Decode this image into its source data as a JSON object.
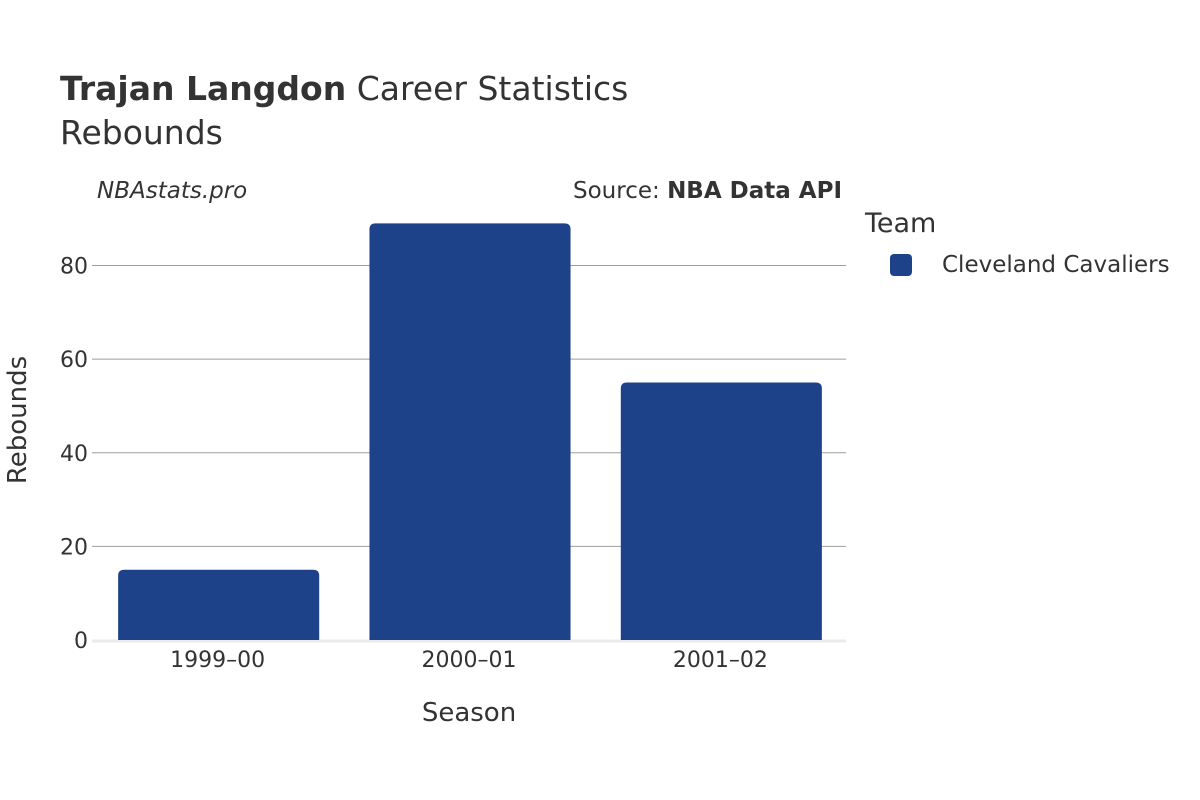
{
  "header": {
    "player": "Trajan Langdon",
    "title_rest": "Career Statistics",
    "subtitle": "Rebounds",
    "brand": "NBAstats.pro",
    "source_prefix": "Source: ",
    "source_name": "NBA Data API"
  },
  "legend": {
    "title": "Team",
    "items": [
      {
        "label": "Cleveland Cavaliers",
        "color": "#1d4289"
      }
    ]
  },
  "chart_data": {
    "type": "bar",
    "categories": [
      "1999–00",
      "2000–01",
      "2001–02"
    ],
    "series": [
      {
        "name": "Cleveland Cavaliers",
        "values": [
          15,
          89,
          55
        ],
        "color": "#1d4289"
      }
    ],
    "xlabel": "Season",
    "ylabel": "Rebounds",
    "ylim": [
      0,
      90
    ],
    "yticks": [
      0,
      20,
      40,
      60,
      80
    ],
    "grid": true,
    "legend_position": "right"
  }
}
